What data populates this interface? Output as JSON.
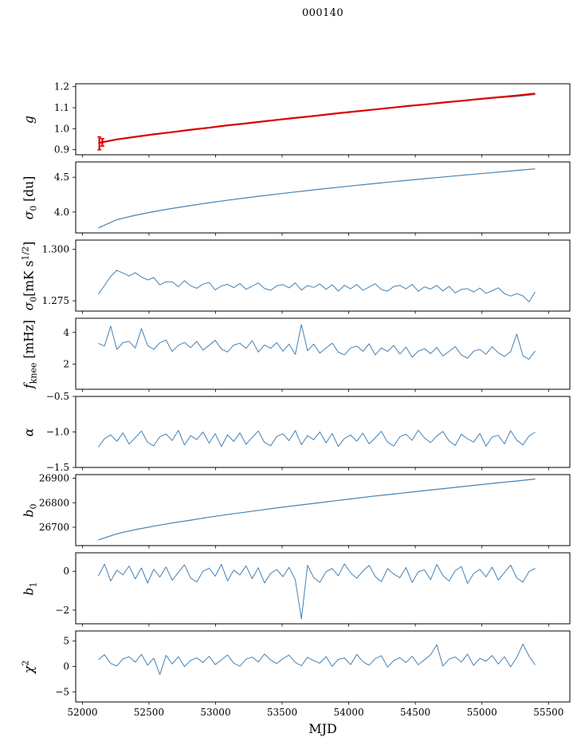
{
  "chart_data": {
    "type": "line",
    "title": "000140",
    "xlabel": "MJD",
    "x": {
      "start": 52120,
      "end": 55400
    },
    "xlim": [
      51950,
      55660
    ],
    "xticks": [
      52000,
      52500,
      53000,
      53500,
      54000,
      54500,
      55000,
      55500
    ],
    "xtick_labels": [
      "52000",
      "52500",
      "53000",
      "53500",
      "54000",
      "54500",
      "55000",
      "55500"
    ],
    "line_color": "#4682b4",
    "accent_color": "#dd0000",
    "panels": [
      {
        "id": "gain",
        "label": {
          "pre": "g"
        },
        "ylim": [
          0.876,
          1.214
        ],
        "yticks": [
          0.9,
          1.0,
          1.1,
          1.2
        ],
        "ytick_labels": [
          "0.9",
          "1.0",
          "1.1",
          "1.2"
        ],
        "series": [
          {
            "name": "gain-fit",
            "color": "#4682b4",
            "width": 1.3,
            "values": [
              0.933,
              0.948,
              0.96,
              0.972,
              0.983,
              0.994,
              1.004,
              1.014,
              1.024,
              1.034,
              1.044,
              1.053,
              1.062,
              1.071,
              1.081,
              1.09,
              1.098,
              1.107,
              1.116,
              1.124,
              1.133,
              1.141,
              1.148,
              1.154,
              1.163
            ]
          },
          {
            "name": "gain-smoothed",
            "color": "#dd0000",
            "width": 2.2,
            "values": [
              0.932,
              0.949,
              0.961,
              0.973,
              0.983,
              0.994,
              1.004,
              1.015,
              1.024,
              1.034,
              1.044,
              1.053,
              1.062,
              1.072,
              1.081,
              1.09,
              1.099,
              1.108,
              1.116,
              1.125,
              1.133,
              1.142,
              1.15,
              1.158,
              1.167
            ]
          }
        ],
        "errorbars": [
          {
            "x": 52128,
            "lo": 0.899,
            "hi": 0.961,
            "color": "#dd0000"
          },
          {
            "x": 52150,
            "lo": 0.917,
            "hi": 0.953,
            "color": "#dd0000"
          }
        ]
      },
      {
        "id": "sigma0-du",
        "label": {
          "pre": "σ",
          "sub": "0",
          "mid": " [du]"
        },
        "ylim": [
          3.7,
          4.72
        ],
        "yticks": [
          4.0,
          4.5
        ],
        "ytick_labels": [
          "4.0",
          "4.5"
        ],
        "series": [
          {
            "name": "sigma0-du",
            "color": "#4682b4",
            "width": 1.2,
            "values": [
              3.772,
              3.888,
              3.952,
              4.004,
              4.05,
              4.091,
              4.13,
              4.166,
              4.2,
              4.233,
              4.264,
              4.294,
              4.323,
              4.351,
              4.379,
              4.405,
              4.431,
              4.456,
              4.481,
              4.505,
              4.529,
              4.552,
              4.575,
              4.598,
              4.62
            ]
          }
        ]
      },
      {
        "id": "sigma0-mk",
        "label": {
          "pre": "σ",
          "sub": "0",
          "mid": "[mK s",
          "sup": "1/2",
          "post": "]"
        },
        "ylim": [
          1.27,
          1.3045
        ],
        "yticks": [
          1.275,
          1.3
        ],
        "ytick_labels": [
          "1.275",
          "1.300"
        ],
        "series": [
          {
            "name": "sigma0-mk",
            "color": "#4682b4",
            "width": 1.0,
            "values": [
              1.2783,
              1.2824,
              1.2869,
              1.2898,
              1.2885,
              1.2871,
              1.2887,
              1.2866,
              1.2851,
              1.2863,
              1.2827,
              1.2843,
              1.2842,
              1.2819,
              1.2848,
              1.2823,
              1.2811,
              1.2831,
              1.2839,
              1.2803,
              1.2822,
              1.283,
              1.2814,
              1.2834,
              1.2806,
              1.2821,
              1.2837,
              1.281,
              1.2801,
              1.2823,
              1.2829,
              1.2813,
              1.2837,
              1.2802,
              1.2824,
              1.2815,
              1.2832,
              1.2806,
              1.2828,
              1.2797,
              1.2825,
              1.2808,
              1.2829,
              1.2801,
              1.2817,
              1.2833,
              1.2805,
              1.2797,
              1.2819,
              1.2825,
              1.2808,
              1.283,
              1.2796,
              1.2818,
              1.2807,
              1.2825,
              1.2798,
              1.282,
              1.2788,
              1.2806,
              1.2809,
              1.2793,
              1.2812,
              1.2786,
              1.2799,
              1.2813,
              1.2785,
              1.2773,
              1.2785,
              1.2774,
              1.2745,
              1.2793
            ]
          }
        ]
      },
      {
        "id": "fknee",
        "label": {
          "pre": "f",
          "sub": "knee",
          "mid": " [mHz]"
        },
        "ylim": [
          0.4,
          4.9
        ],
        "yticks": [
          2,
          4
        ],
        "ytick_labels": [
          "2",
          "4"
        ],
        "series": [
          {
            "name": "fknee",
            "color": "#4682b4",
            "width": 1.0,
            "values": [
              3.31,
              3.14,
              4.4,
              2.92,
              3.36,
              3.44,
              3.01,
              4.25,
              3.17,
              2.93,
              3.35,
              3.52,
              2.79,
              3.19,
              3.37,
              3.04,
              3.44,
              2.88,
              3.19,
              3.5,
              2.95,
              2.76,
              3.2,
              3.32,
              2.99,
              3.48,
              2.76,
              3.2,
              3.0,
              3.36,
              2.81,
              3.26,
              2.61,
              4.5,
              2.84,
              3.26,
              2.69,
              3.01,
              3.32,
              2.75,
              2.58,
              3.02,
              3.14,
              2.8,
              3.28,
              2.58,
              3.02,
              2.8,
              3.18,
              2.63,
              3.08,
              2.43,
              2.82,
              2.97,
              2.66,
              3.05,
              2.51,
              2.8,
              3.11,
              2.57,
              2.37,
              2.81,
              2.93,
              2.62,
              3.1,
              2.71,
              2.48,
              2.78,
              3.9,
              2.53,
              2.3,
              2.83
            ]
          }
        ]
      },
      {
        "id": "alpha",
        "label": {
          "pre": "α"
        },
        "ylim": [
          -1.5,
          -0.5
        ],
        "yticks": [
          -1.5,
          -1.0,
          -0.5
        ],
        "ytick_labels": [
          "−1.5",
          "−1.0",
          "−0.5"
        ],
        "series": [
          {
            "name": "alpha",
            "color": "#4682b4",
            "width": 1.0,
            "values": [
              -1.214,
              -1.094,
              -1.042,
              -1.133,
              -1.014,
              -1.172,
              -1.081,
              -0.988,
              -1.146,
              -1.196,
              -1.066,
              -1.029,
              -1.121,
              -0.978,
              -1.183,
              -1.053,
              -1.108,
              -1.001,
              -1.157,
              -1.025,
              -1.208,
              -1.039,
              -1.135,
              -1.012,
              -1.174,
              -1.078,
              -0.986,
              -1.148,
              -1.194,
              -1.064,
              -1.026,
              -1.123,
              -0.98,
              -1.181,
              -1.051,
              -1.11,
              -0.999,
              -1.155,
              -1.022,
              -1.205,
              -1.091,
              -1.044,
              -1.13,
              -1.017,
              -1.169,
              -1.083,
              -0.991,
              -1.143,
              -1.199,
              -1.069,
              -1.031,
              -1.118,
              -0.975,
              -1.084,
              -1.149,
              -1.06,
              -0.993,
              -1.127,
              -1.191,
              -1.032,
              -1.097,
              -1.143,
              -1.021,
              -1.201,
              -1.071,
              -1.047,
              -1.168,
              -0.983,
              -1.116,
              -1.182,
              -1.057,
              -1.006
            ]
          }
        ]
      },
      {
        "id": "b0",
        "label": {
          "pre": "b",
          "sub": "0"
        },
        "ylim": [
          26625,
          26915
        ],
        "yticks": [
          26700,
          26800,
          26900
        ],
        "ytick_labels": [
          "26700",
          "26800",
          "26900"
        ],
        "series": [
          {
            "name": "b0",
            "color": "#4682b4",
            "width": 1.2,
            "values": [
              26648,
              26673,
              26690,
              26704,
              26717,
              26728,
              26740,
              26751,
              26761,
              26771,
              26781,
              26790,
              26799,
              26808,
              26817,
              26826,
              26834,
              26842,
              26850,
              26858,
              26866,
              26874,
              26882,
              26889,
              26897
            ]
          }
        ]
      },
      {
        "id": "b1",
        "label": {
          "pre": "b",
          "sub": "1"
        },
        "ylim": [
          -2.7,
          0.95
        ],
        "yticks": [
          -2,
          0
        ],
        "ytick_labels": [
          "−2",
          "0"
        ],
        "series": [
          {
            "name": "b1",
            "color": "#4682b4",
            "width": 1.0,
            "values": [
              -0.24,
              0.37,
              -0.5,
              0.05,
              -0.18,
              0.27,
              -0.39,
              0.17,
              -0.61,
              0.11,
              -0.3,
              0.22,
              -0.46,
              -0.06,
              0.33,
              -0.35,
              -0.55,
              0.0,
              0.16,
              -0.25,
              0.36,
              -0.49,
              0.06,
              -0.19,
              0.28,
              -0.38,
              0.18,
              -0.6,
              -0.11,
              0.09,
              -0.28,
              0.2,
              -0.44,
              -2.45,
              0.31,
              -0.33,
              -0.57,
              -0.02,
              0.14,
              -0.23,
              0.38,
              -0.08,
              -0.36,
              0.02,
              0.3,
              -0.27,
              -0.54,
              0.14,
              -0.14,
              -0.33,
              0.19,
              -0.58,
              -0.03,
              0.08,
              -0.44,
              0.35,
              -0.22,
              -0.5,
              0.03,
              0.25,
              -0.63,
              -0.12,
              0.1,
              -0.29,
              0.21,
              -0.45,
              -0.07,
              0.32,
              -0.34,
              -0.56,
              -0.01,
              0.15
            ]
          }
        ]
      },
      {
        "id": "chi2",
        "label": {
          "pre": "χ",
          "sup": "2"
        },
        "ylim": [
          -7,
          7
        ],
        "yticks": [
          -5,
          0,
          5
        ],
        "ytick_labels": [
          "−5",
          "0",
          "5"
        ],
        "last": true,
        "series": [
          {
            "name": "chi2",
            "color": "#4682b4",
            "width": 1.0,
            "values": [
              1.34,
              2.33,
              0.58,
              0.09,
              1.49,
              1.9,
              0.85,
              2.39,
              0.23,
              1.63,
              -1.6,
              2.19,
              0.51,
              1.94,
              -0.03,
              1.2,
              1.7,
              0.78,
              2.0,
              0.36,
              1.28,
              2.28,
              0.64,
              0.04,
              1.44,
              1.84,
              0.9,
              2.44,
              1.27,
              0.57,
              1.53,
              2.25,
              0.81,
              0.12,
              1.83,
              1.13,
              0.64,
              1.95,
              0.01,
              1.41,
              1.67,
              0.37,
              2.36,
              0.93,
              0.22,
              1.56,
              2.11,
              -0.13,
              1.17,
              1.73,
              0.75,
              2.02,
              0.33,
              1.31,
              2.3,
              4.3,
              0.06,
              1.46,
              1.87,
              0.88,
              2.42,
              0.2,
              1.6,
              1.02,
              2.16,
              0.48,
              1.91,
              -0.06,
              1.76,
              4.4,
              2.05,
              0.3
            ]
          }
        ]
      }
    ]
  }
}
